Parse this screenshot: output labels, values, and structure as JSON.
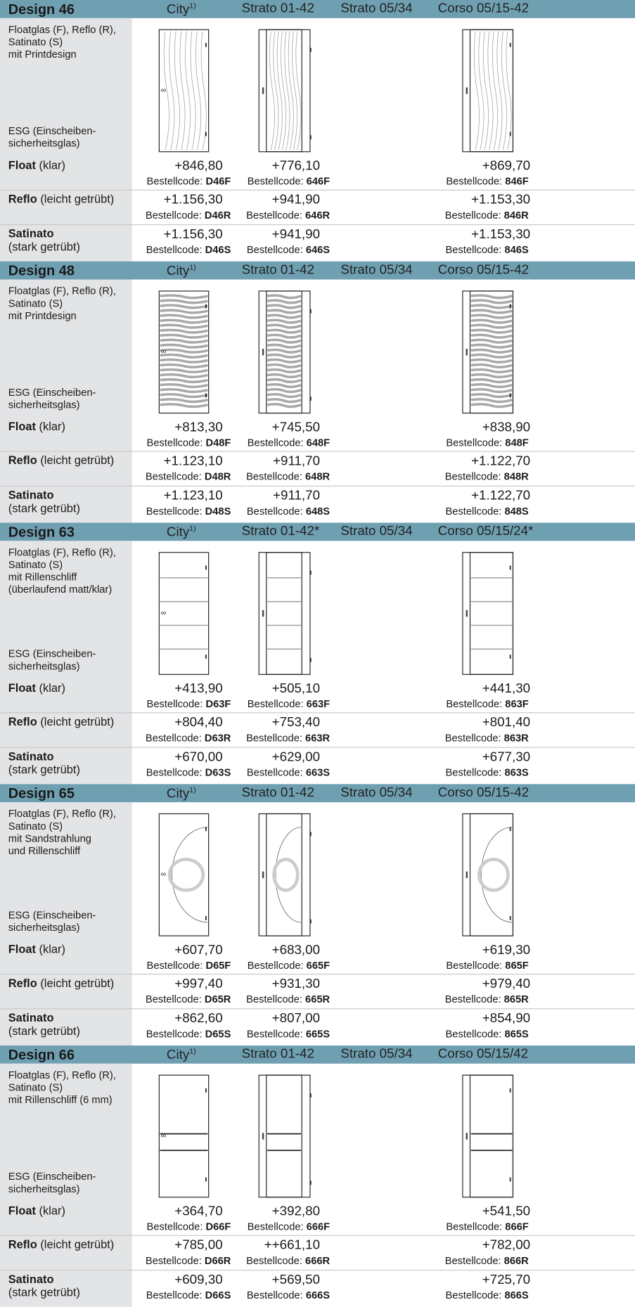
{
  "glass_types": [
    {
      "name": "Float",
      "note": "(klar)"
    },
    {
      "name": "Reflo",
      "note": "(leicht getrübt)"
    },
    {
      "name": "Satinato",
      "note": "(stark getrübt)"
    }
  ],
  "code_label": "Bestellcode:",
  "esg_label": "ESG (Einscheiben-\nsicherheitsglas)",
  "designs": [
    {
      "title": "Design 46",
      "columns": [
        {
          "text": "City",
          "sup": "1)"
        },
        "Strato 01-42",
        "Strato 05/34",
        "Corso 05/15-42"
      ],
      "description": "Floatglas (F), Reflo (R),\nSatinato (S)\nmit Printdesign",
      "prices": [
        [
          "+846,80",
          "+776,10",
          "+869,70"
        ],
        [
          "+1.156,30",
          "+941,90",
          "+1.153,30"
        ],
        [
          "+1.156,30",
          "+941,90",
          "+1.153,30"
        ]
      ],
      "codes": [
        [
          "D46F",
          "646F",
          "846F"
        ],
        [
          "D46R",
          "646R",
          "846R"
        ],
        [
          "D46S",
          "646S",
          "846S"
        ]
      ]
    },
    {
      "title": "Design 48",
      "columns": [
        {
          "text": "City",
          "sup": "1)"
        },
        "Strato 01-42",
        "Strato 05/34",
        "Corso 05/15-42"
      ],
      "description": "Floatglas (F), Reflo (R),\nSatinato (S)\nmit Printdesign",
      "prices": [
        [
          "+813,30",
          "+745,50",
          "+838,90"
        ],
        [
          "+1.123,10",
          "+911,70",
          "+1.122,70"
        ],
        [
          "+1.123,10",
          "+911,70",
          "+1.122,70"
        ]
      ],
      "codes": [
        [
          "D48F",
          "648F",
          "848F"
        ],
        [
          "D48R",
          "648R",
          "848R"
        ],
        [
          "D48S",
          "648S",
          "848S"
        ]
      ]
    },
    {
      "title": "Design 63",
      "columns": [
        {
          "text": "City",
          "sup": "1)"
        },
        "Strato 01-42*",
        "Strato 05/34",
        "Corso 05/15/24*"
      ],
      "description": "Floatglas (F), Reflo (R),\nSatinato (S)\nmit Rillenschliff\n(überlaufend matt/klar)",
      "prices": [
        [
          "+413,90",
          "+505,10",
          "+441,30"
        ],
        [
          "+804,40",
          "+753,40",
          "+801,40"
        ],
        [
          "+670,00",
          "+629,00",
          "+677,30"
        ]
      ],
      "codes": [
        [
          "D63F",
          "663F",
          "863F"
        ],
        [
          "D63R",
          "663R",
          "863R"
        ],
        [
          "D63S",
          "663S",
          "863S"
        ]
      ]
    },
    {
      "title": "Design 65",
      "columns": [
        {
          "text": "City",
          "sup": "1)"
        },
        "Strato 01-42",
        "Strato 05/34",
        "Corso 05/15-42"
      ],
      "description": "Floatglas (F), Reflo (R),\nSatinato (S)\nmit Sandstrahlung\nund Rillenschliff",
      "prices": [
        [
          "+607,70",
          "+683,00",
          "+619,30"
        ],
        [
          "+997,40",
          "+931,30",
          "+979,40"
        ],
        [
          "+862,60",
          "+807,00",
          "+854,90"
        ]
      ],
      "codes": [
        [
          "D65F",
          "665F",
          "865F"
        ],
        [
          "D65R",
          "665R",
          "865R"
        ],
        [
          "D65S",
          "665S",
          "865S"
        ]
      ]
    },
    {
      "title": "Design 66",
      "columns": [
        {
          "text": "City",
          "sup": "1)"
        },
        "Strato 01-42",
        "Strato 05/34",
        "Corso 05/15/42"
      ],
      "description": "Floatglas (F), Reflo (R),\nSatinato (S)\nmit Rillenschliff (6 mm)",
      "prices": [
        [
          "+364,70",
          "+392,80",
          "+541,50"
        ],
        [
          "+785,00",
          "++661,10",
          "+782,00"
        ],
        [
          "+609,30",
          "+569,50",
          "+725,70"
        ]
      ],
      "codes": [
        [
          "D66F",
          "666F",
          "866F"
        ],
        [
          "D66R",
          "666R",
          "866R"
        ],
        [
          "D66S",
          "666S",
          "866S"
        ]
      ]
    }
  ]
}
